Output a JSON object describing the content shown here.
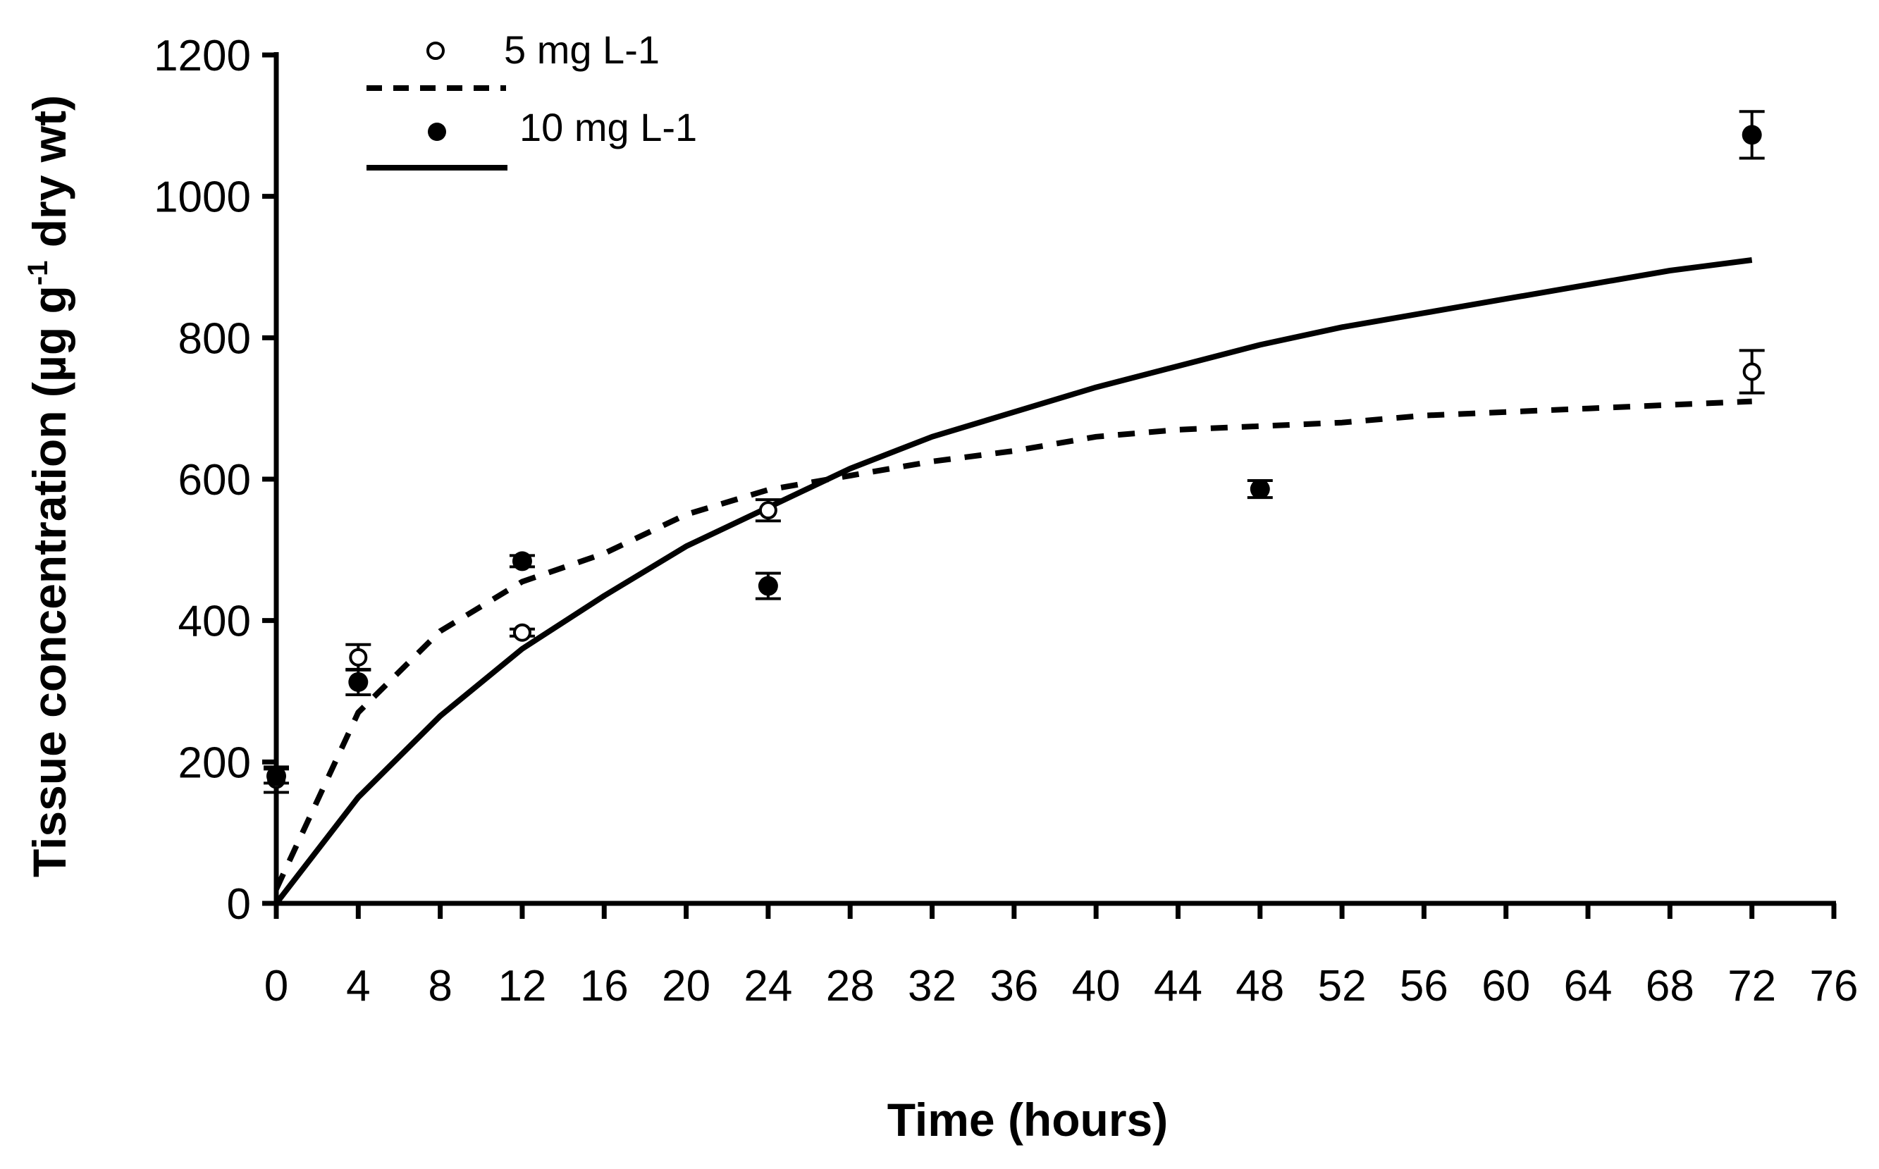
{
  "chart_data": {
    "type": "scatter",
    "title": "",
    "xlabel": "Time (hours)",
    "ylabel": {
      "prefix": "Tissue concentration (µg g",
      "superscript": "-1",
      "suffix": " dry wt)"
    },
    "xlim": [
      0,
      76
    ],
    "ylim": [
      0,
      1200
    ],
    "xticks": [
      "0",
      "4",
      "8",
      "12",
      "16",
      "20",
      "24",
      "28",
      "32",
      "36",
      "40",
      "44",
      "48",
      "52",
      "56",
      "60",
      "64",
      "68",
      "72",
      "76"
    ],
    "yticks": [
      "0",
      "200",
      "400",
      "600",
      "800",
      "1000",
      "1200"
    ],
    "grid": false,
    "legend_position": "top-left",
    "legend": [
      {
        "label": "5 mg L-1",
        "kind": "marker-open"
      },
      {
        "label": "",
        "kind": "line-dashed"
      },
      {
        "label": "10 mg L-1",
        "kind": "marker-filled"
      },
      {
        "label": "",
        "kind": "line-solid"
      }
    ],
    "series": [
      {
        "name": "5 mg L-1",
        "marker": "open-circle",
        "points": [
          {
            "x": 0,
            "y": 175,
            "err": 18
          },
          {
            "x": 4,
            "y": 348,
            "err": 18
          },
          {
            "x": 12,
            "y": 383,
            "err": 5
          },
          {
            "x": 24,
            "y": 556,
            "err": 15
          },
          {
            "x": 72,
            "y": 752,
            "err": 30
          }
        ]
      },
      {
        "name": "10 mg L-1",
        "marker": "filled-circle",
        "points": [
          {
            "x": 0,
            "y": 180,
            "err": 10
          },
          {
            "x": 4,
            "y": 313,
            "err": 18
          },
          {
            "x": 12,
            "y": 484,
            "err": 8
          },
          {
            "x": 24,
            "y": 449,
            "err": 18
          },
          {
            "x": 48,
            "y": 586,
            "err": 12
          },
          {
            "x": 72,
            "y": 1087,
            "err": 33
          }
        ]
      }
    ],
    "fitted_lines": [
      {
        "name": "5 mg L-1 model",
        "style": "dashed",
        "x": [
          0,
          4,
          8,
          12,
          16,
          20,
          24,
          28,
          32,
          36,
          40,
          44,
          48,
          52,
          56,
          60,
          64,
          68,
          72
        ],
        "y": [
          20,
          270,
          385,
          455,
          495,
          550,
          585,
          605,
          625,
          640,
          660,
          670,
          675,
          680,
          690,
          695,
          700,
          705,
          710
        ]
      },
      {
        "name": "10 mg L-1 model",
        "style": "solid",
        "x": [
          0,
          4,
          8,
          12,
          16,
          20,
          24,
          28,
          32,
          36,
          40,
          44,
          48,
          52,
          56,
          60,
          64,
          68,
          72
        ],
        "y": [
          0,
          150,
          265,
          360,
          435,
          505,
          560,
          615,
          660,
          695,
          730,
          760,
          790,
          815,
          835,
          855,
          875,
          895,
          910
        ]
      }
    ]
  }
}
